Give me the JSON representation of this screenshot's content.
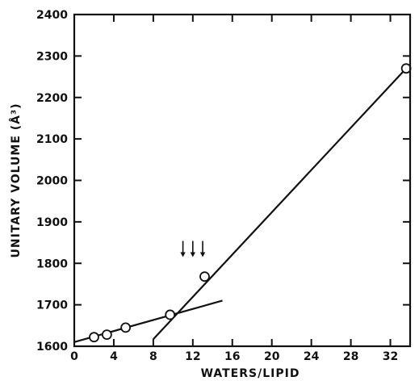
{
  "chart_data": {
    "type": "scatter",
    "xlabel": "WATERS/LIPID",
    "ylabel": "UNITARY VOLUME (Å³)",
    "xlim": [
      0,
      34
    ],
    "ylim": [
      1600,
      2400
    ],
    "x_ticks": [
      0,
      4,
      8,
      12,
      16,
      20,
      24,
      28,
      32
    ],
    "y_ticks": [
      1600,
      1700,
      1800,
      1900,
      2000,
      2100,
      2200,
      2300,
      2400
    ],
    "x_tick_labels": [
      "0",
      "4",
      "8",
      "12",
      "16",
      "20",
      "24",
      "28",
      "32"
    ],
    "y_tick_labels": [
      "1600",
      "1700",
      "1800",
      "1900",
      "2000",
      "2100",
      "2200",
      "2300",
      "2400"
    ],
    "grid": false,
    "points": [
      {
        "x": 2.0,
        "y": 1622
      },
      {
        "x": 3.3,
        "y": 1628
      },
      {
        "x": 5.2,
        "y": 1645
      },
      {
        "x": 9.7,
        "y": 1676
      },
      {
        "x": 13.2,
        "y": 1768
      },
      {
        "x": 33.6,
        "y": 2270
      }
    ],
    "lines": [
      {
        "x": [
          0,
          15
        ],
        "y": [
          1610,
          1710
        ]
      },
      {
        "x": [
          8,
          33.6
        ],
        "y": [
          1617,
          2270
        ]
      }
    ],
    "annotations": {
      "arrows_down": [
        {
          "x": 11.0,
          "y": 1815
        },
        {
          "x": 12.0,
          "y": 1815
        },
        {
          "x": 13.0,
          "y": 1815
        }
      ]
    }
  }
}
